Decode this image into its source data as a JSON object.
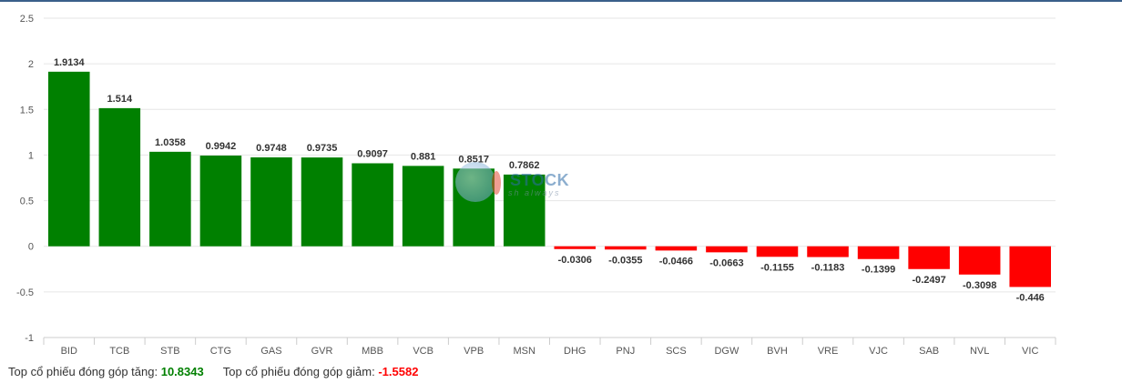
{
  "chart_data": {
    "type": "bar",
    "categories": [
      "BID",
      "TCB",
      "STB",
      "CTG",
      "GAS",
      "GVR",
      "MBB",
      "VCB",
      "VPB",
      "MSN",
      "DHG",
      "PNJ",
      "SCS",
      "DGW",
      "BVH",
      "VRE",
      "VJC",
      "SAB",
      "NVL",
      "VIC"
    ],
    "values": [
      1.9134,
      1.514,
      1.0358,
      0.9942,
      0.9748,
      0.9735,
      0.9097,
      0.881,
      0.8517,
      0.7862,
      -0.0306,
      -0.0355,
      -0.0466,
      -0.0663,
      -0.1155,
      -0.1183,
      -0.1399,
      -0.2497,
      -0.3098,
      -0.446
    ],
    "data_labels": [
      "1.9134",
      "1.514",
      "1.0358",
      "0.9942",
      "0.9748",
      "0.9735",
      "0.9097",
      "0.881",
      "0.8517",
      "0.7862",
      "-0.0306",
      "-0.0355",
      "-0.0466",
      "-0.0663",
      "-0.1155",
      "-0.1183",
      "-0.1399",
      "-0.2497",
      "-0.3098",
      "-0.446"
    ],
    "yticks": [
      "2.5",
      "2",
      "1.5",
      "1",
      "0.5",
      "0",
      "-0.5",
      "-1"
    ],
    "ylim": [
      -1,
      2.5
    ],
    "grid": true,
    "colors": {
      "positive": "#008000",
      "negative": "#ff0000"
    },
    "title": "",
    "xlabel": "",
    "ylabel": ""
  },
  "watermark": {
    "text": "STOCK",
    "tagline": "sh always"
  },
  "summary": {
    "gain_label": "Top cổ phiếu đóng góp tăng:",
    "gain_value": "10.8343",
    "loss_label": "Top cổ phiếu đóng góp giảm:",
    "loss_value": "-1.5582"
  }
}
